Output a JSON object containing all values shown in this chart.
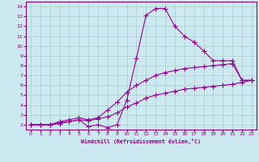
{
  "xlabel": "Windchill (Refroidissement éolien,°C)",
  "background_color": "#cce8f0",
  "plot_bg_color": "#cce8f0",
  "grid_color": "#aacccc",
  "line_color": "#990099",
  "xlim": [
    -0.5,
    23.5
  ],
  "ylim": [
    1.5,
    14.5
  ],
  "xticks": [
    0,
    1,
    2,
    3,
    4,
    5,
    6,
    7,
    8,
    9,
    10,
    11,
    12,
    13,
    14,
    15,
    16,
    17,
    18,
    19,
    20,
    21,
    22,
    23
  ],
  "yticks": [
    2,
    3,
    4,
    5,
    6,
    7,
    8,
    9,
    10,
    11,
    12,
    13,
    14
  ],
  "line1_x": [
    0,
    1,
    2,
    3,
    4,
    5,
    6,
    7,
    8,
    9,
    10,
    11,
    12,
    13,
    14,
    15,
    16,
    17,
    18,
    19,
    20,
    21,
    22,
    23
  ],
  "line1_y": [
    2.0,
    2.0,
    2.0,
    2.1,
    2.3,
    2.5,
    1.8,
    2.0,
    1.7,
    2.0,
    4.5,
    8.7,
    13.1,
    13.8,
    13.8,
    12.0,
    11.0,
    10.4,
    9.5,
    8.5,
    8.5,
    8.5,
    6.5,
    6.5
  ],
  "line2_x": [
    0,
    1,
    2,
    3,
    4,
    5,
    6,
    7,
    8,
    9,
    10,
    11,
    12,
    13,
    14,
    15,
    16,
    17,
    18,
    19,
    20,
    21,
    22,
    23
  ],
  "line2_y": [
    2.0,
    2.0,
    2.0,
    2.3,
    2.5,
    2.7,
    2.5,
    2.7,
    3.5,
    4.3,
    5.3,
    6.0,
    6.5,
    7.0,
    7.3,
    7.5,
    7.7,
    7.8,
    7.9,
    8.0,
    8.1,
    8.2,
    6.5,
    6.5
  ],
  "line3_x": [
    0,
    1,
    2,
    3,
    4,
    5,
    6,
    7,
    8,
    9,
    10,
    11,
    12,
    13,
    14,
    15,
    16,
    17,
    18,
    19,
    20,
    21,
    22,
    23
  ],
  "line3_y": [
    2.0,
    2.0,
    2.0,
    2.2,
    2.3,
    2.5,
    2.4,
    2.6,
    2.8,
    3.2,
    3.8,
    4.2,
    4.7,
    5.0,
    5.2,
    5.4,
    5.6,
    5.7,
    5.8,
    5.9,
    6.0,
    6.1,
    6.3,
    6.5
  ]
}
